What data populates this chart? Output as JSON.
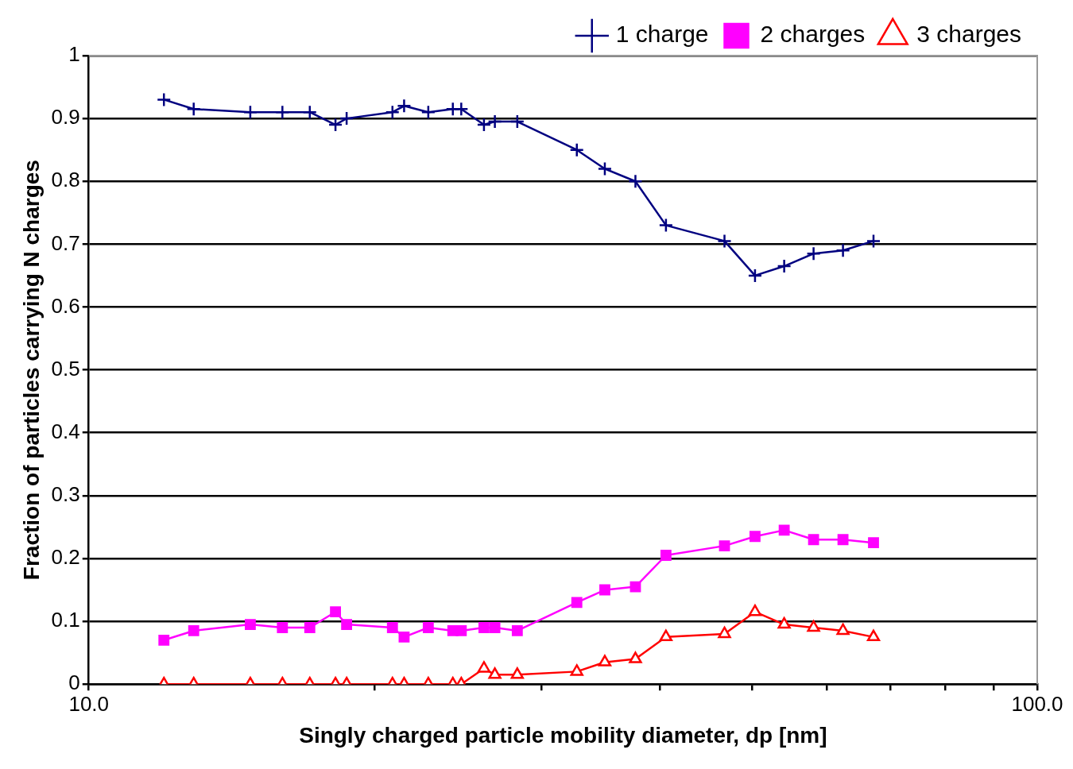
{
  "chart_data": {
    "type": "line",
    "xlabel": "Singly charged particle mobility diameter, dp [nm]",
    "ylabel": "Fraction of particles carrying N charges",
    "x": [
      12.0,
      12.9,
      14.8,
      16.0,
      17.1,
      18.2,
      18.7,
      20.9,
      21.5,
      22.8,
      24.2,
      24.7,
      26.1,
      26.8,
      28.3,
      32.7,
      35.0,
      37.7,
      40.6,
      46.8,
      50.4,
      54.1,
      58.1,
      62.4,
      67.2
    ],
    "series": [
      {
        "name": "1 charge",
        "color": "#000080",
        "marker": "cross",
        "values": [
          0.93,
          0.915,
          0.91,
          0.91,
          0.91,
          0.89,
          0.9,
          0.91,
          0.92,
          0.91,
          0.915,
          0.915,
          0.89,
          0.895,
          0.895,
          0.85,
          0.82,
          0.8,
          0.73,
          0.705,
          0.65,
          0.665,
          0.685,
          0.69,
          0.705
        ]
      },
      {
        "name": "2 charges",
        "color": "#ff00ff",
        "marker": "square",
        "values": [
          0.07,
          0.085,
          0.095,
          0.09,
          0.09,
          0.115,
          0.095,
          0.09,
          0.075,
          0.09,
          0.085,
          0.085,
          0.09,
          0.09,
          0.085,
          0.13,
          0.15,
          0.155,
          0.205,
          0.22,
          0.235,
          0.245,
          0.23,
          0.23,
          0.225
        ]
      },
      {
        "name": "3 charges",
        "color": "#ff0000",
        "marker": "triangle",
        "values": [
          0,
          0,
          0,
          0,
          0,
          0,
          0,
          0,
          0,
          0,
          0,
          0,
          0.025,
          0.015,
          0.015,
          0.02,
          0.035,
          0.04,
          0.075,
          0.08,
          0.115,
          0.095,
          0.09,
          0.085,
          0.075
        ]
      }
    ],
    "log": "x",
    "xlim": [
      10,
      100
    ],
    "xticks": [
      {
        "value": 10,
        "label": "10.0"
      },
      {
        "value": 20,
        "label": null
      },
      {
        "value": 30,
        "label": null
      },
      {
        "value": 40,
        "label": null
      },
      {
        "value": 50,
        "label": null
      },
      {
        "value": 60,
        "label": null
      },
      {
        "value": 70,
        "label": null
      },
      {
        "value": 80,
        "label": null
      },
      {
        "value": 90,
        "label": null
      },
      {
        "value": 100,
        "label": "100.0"
      }
    ],
    "ylim": [
      0,
      1
    ],
    "yticks": [
      0,
      0.1,
      0.2,
      0.3,
      0.4,
      0.5,
      0.6,
      0.7,
      0.8,
      0.9,
      1
    ],
    "grid": "y",
    "legend": "top right",
    "line_style": "solid"
  }
}
